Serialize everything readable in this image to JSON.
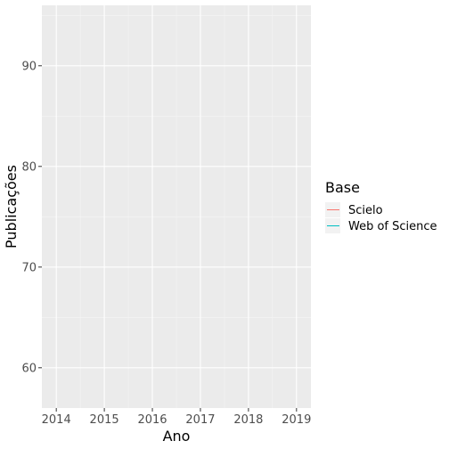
{
  "chart_data": {
    "type": "line",
    "title": "",
    "xlabel": "Ano",
    "ylabel": "Publicações",
    "xlim": [
      2013.7,
      2019.3
    ],
    "ylim": [
      56,
      96
    ],
    "x_ticks": [
      2014,
      2015,
      2016,
      2017,
      2018,
      2019
    ],
    "x_tick_labels": [
      "2014",
      "2015",
      "2016",
      "2017",
      "2018",
      "2019"
    ],
    "y_ticks": [
      60,
      70,
      80,
      90
    ],
    "y_tick_labels": [
      "60",
      "70",
      "80",
      "90"
    ],
    "grid": true,
    "legend": {
      "title": "Base",
      "placement": "right",
      "entries": [
        {
          "name": "Scielo",
          "color": "#F8766D"
        },
        {
          "name": "Web of Science",
          "color": "#00BFC4"
        }
      ]
    },
    "series": [
      {
        "name": "Scielo",
        "color": "#F8766D",
        "x": [],
        "y": []
      },
      {
        "name": "Web of Science",
        "color": "#00BFC4",
        "x": [],
        "y": []
      }
    ],
    "colors": {
      "panel_background": "#EBEBEB",
      "grid_major": "#FFFFFF",
      "grid_minor": "#F5F5F5",
      "tick": "#333333"
    }
  }
}
